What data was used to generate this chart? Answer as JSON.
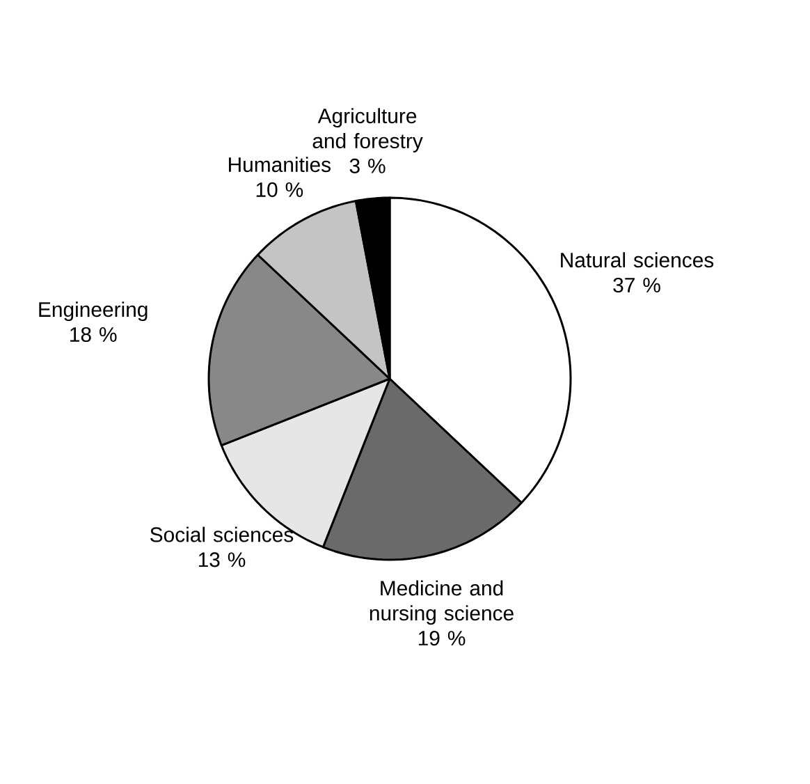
{
  "chart_data": {
    "type": "pie",
    "categories": [
      "Natural sciences",
      "Medicine and nursing science",
      "Social sciences",
      "Engineering",
      "Humanities",
      "Agriculture and forestry"
    ],
    "values": [
      37,
      19,
      13,
      18,
      10,
      3
    ],
    "colors": [
      "#ffffff",
      "#6a6a6a",
      "#e6e6e6",
      "#888888",
      "#c4c4c4",
      "#000000"
    ],
    "value_labels": [
      "37 %",
      "19 %",
      "13 %",
      "18 %",
      "10 %",
      "3 %"
    ]
  }
}
